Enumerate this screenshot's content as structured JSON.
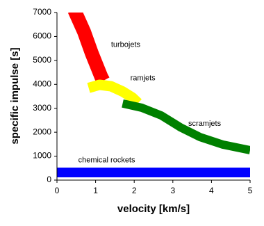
{
  "chart_data": {
    "type": "line",
    "x_label": "velocity [km/s]",
    "y_label": "specific impulse [s]",
    "xlim": [
      0,
      5
    ],
    "ylim": [
      0,
      7000
    ],
    "xticks": [
      0,
      1,
      2,
      3,
      4,
      5
    ],
    "yticks": [
      0,
      1000,
      2000,
      3000,
      4000,
      5000,
      6000,
      7000
    ],
    "grid": false,
    "series": [
      {
        "name": "turbojets",
        "color": "#ff0000",
        "x": [
          0.45,
          0.7,
          0.9,
          1.05,
          1.15,
          1.2
        ],
        "values": [
          7100,
          6200,
          5300,
          4700,
          4300,
          4150
        ]
      },
      {
        "name": "ramjets",
        "color": "#ffff00",
        "x": [
          0.82,
          1.1,
          1.4,
          1.7,
          1.95,
          2.1
        ],
        "values": [
          3850,
          3980,
          3920,
          3700,
          3450,
          3220
        ]
      },
      {
        "name": "scramjets",
        "color": "#008000",
        "x": [
          1.7,
          2.2,
          2.7,
          3.2,
          3.7,
          4.3,
          5.0
        ],
        "values": [
          3200,
          3020,
          2700,
          2200,
          1800,
          1480,
          1250
        ]
      },
      {
        "name": "chemical rockets",
        "color": "#0000ff",
        "x": [
          0,
          5
        ],
        "values": [
          320,
          320
        ]
      }
    ]
  }
}
